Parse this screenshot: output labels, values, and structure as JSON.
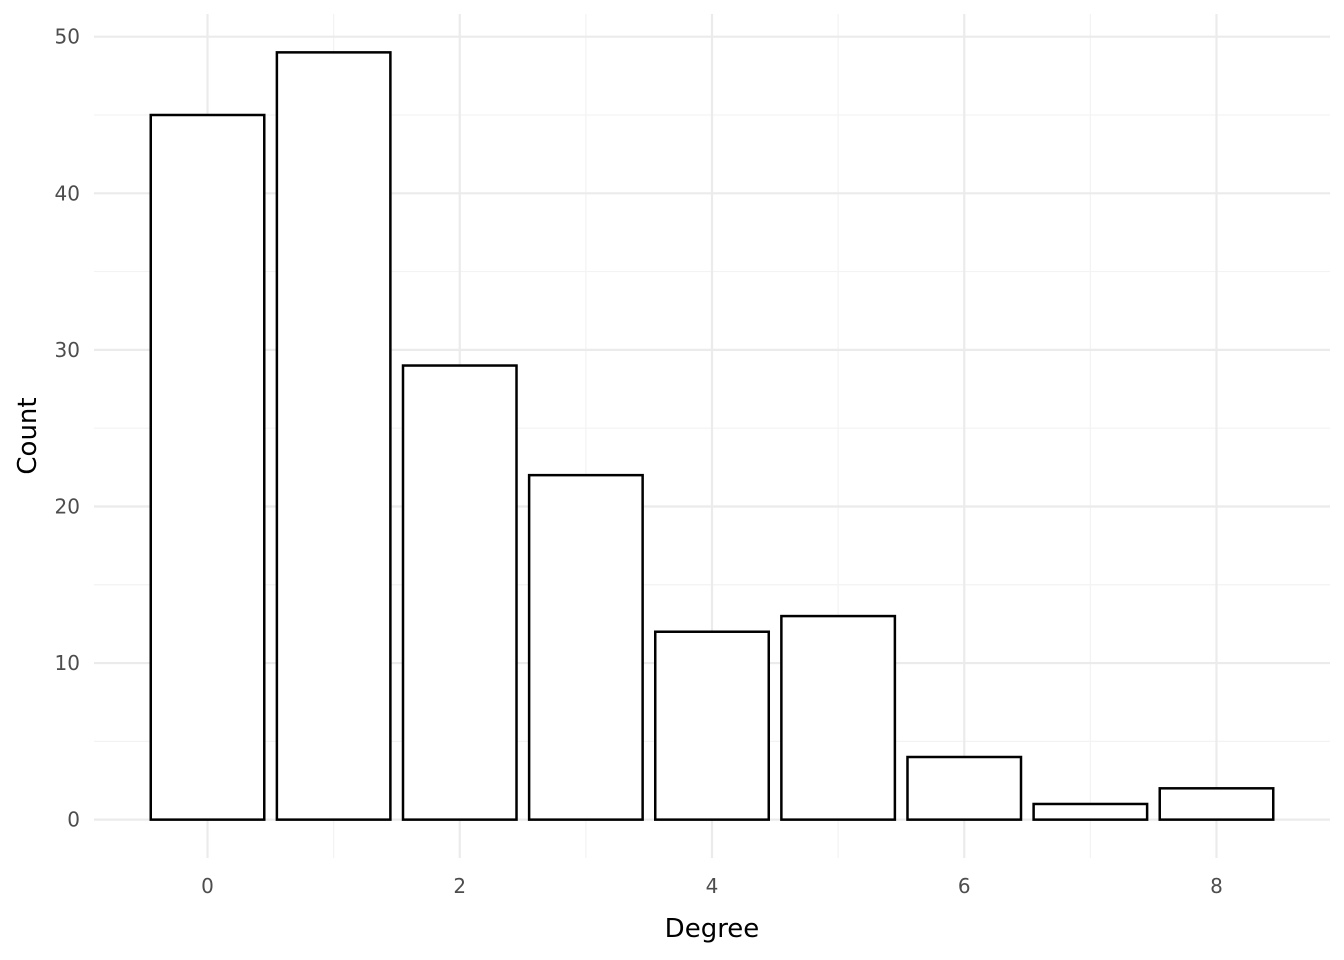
{
  "chart_data": {
    "type": "bar",
    "title": "",
    "xlabel": "Degree",
    "ylabel": "Count",
    "categories": [
      0,
      1,
      2,
      3,
      4,
      5,
      6,
      7,
      8
    ],
    "values": [
      45,
      49,
      29,
      22,
      12,
      13,
      4,
      1,
      2
    ],
    "x_ticks": [
      0,
      2,
      4,
      6,
      8
    ],
    "y_ticks": [
      0,
      10,
      20,
      30,
      40,
      50
    ],
    "xlim": [
      -0.9,
      8.9
    ],
    "ylim": [
      -2.45,
      51.45
    ],
    "grid": true,
    "legend": "none",
    "colors": {
      "bar_fill": "#ffffff",
      "bar_stroke": "#000000",
      "grid_major": "#ebebeb",
      "grid_minor": "#f3f3f3",
      "tick_text": "#4d4d4d",
      "axis_title": "#000000"
    }
  }
}
